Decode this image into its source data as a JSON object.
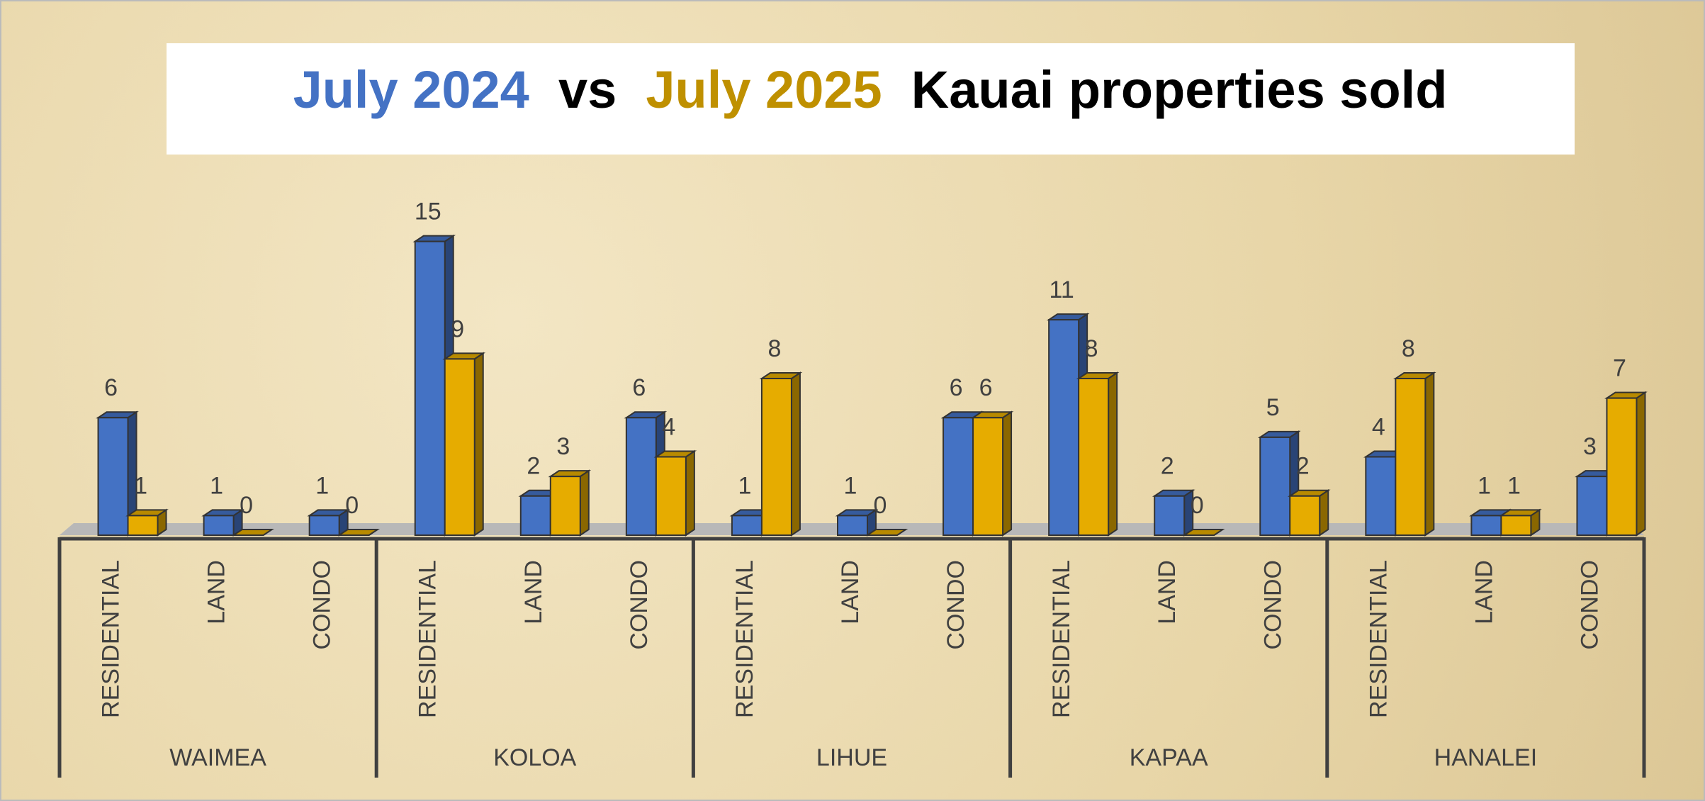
{
  "chart_data": {
    "type": "bar3d",
    "title_parts": [
      "July  2024",
      "vs",
      "July 2025",
      "Kauai properties sold"
    ],
    "title_colors": [
      "#4472c4",
      "#000000",
      "#bf9000",
      "#000000"
    ],
    "groups": [
      "WAIMEA",
      "KOLOA",
      "LIHUE",
      "KAPAA",
      "HANALEI"
    ],
    "categories": [
      "RESIDENTIAL",
      "LAND",
      "CONDO",
      "RESIDENTIAL",
      "LAND",
      "CONDO",
      "RESIDENTIAL",
      "LAND",
      "CONDO",
      "RESIDENTIAL",
      "LAND",
      "CONDO",
      "RESIDENTIAL",
      "LAND",
      "CONDO"
    ],
    "series": [
      {
        "color": "#4472c4",
        "values": [
          6,
          1,
          1,
          15,
          2,
          6,
          1,
          1,
          6,
          11,
          2,
          5,
          4,
          1,
          3
        ]
      },
      {
        "color": "#e6ac00",
        "values": [
          1,
          0,
          0,
          9,
          3,
          4,
          8,
          0,
          6,
          8,
          0,
          2,
          8,
          1,
          7
        ]
      }
    ],
    "ylim": [
      0,
      16
    ]
  }
}
